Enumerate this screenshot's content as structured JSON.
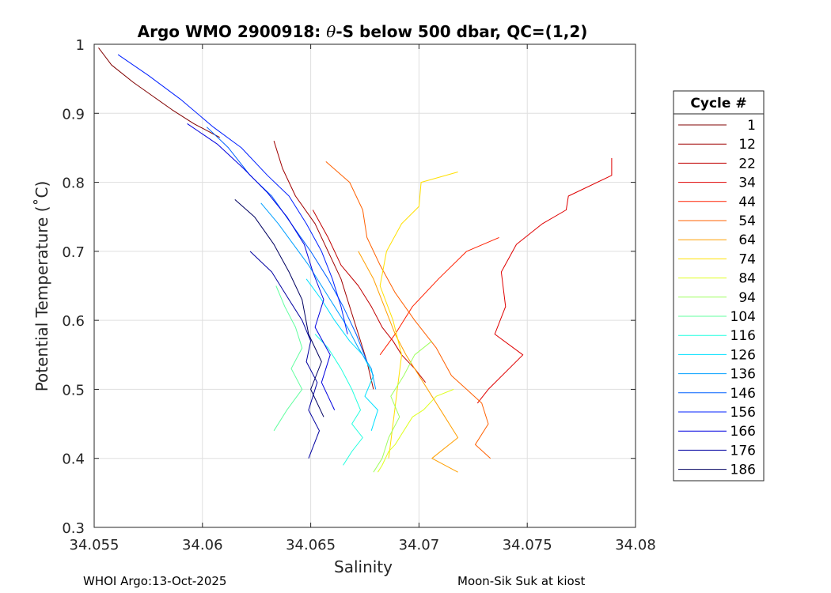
{
  "chart_data": {
    "type": "line",
    "title_prefix": "Argo WMO 2900918: ",
    "title_theta": "θ",
    "title_suffix": "-S below 500 dbar,  QC=(1,2)",
    "xlabel": "Salinity",
    "ylabel": "Potential Temperature (˚C)",
    "xlim": [
      34.055,
      34.08
    ],
    "ylim": [
      0.3,
      1.0
    ],
    "xticks": [
      34.055,
      34.06,
      34.065,
      34.07,
      34.075,
      34.08
    ],
    "xtick_labels": [
      "34.055",
      "34.06",
      "34.065",
      "34.07",
      "34.075",
      "34.08"
    ],
    "yticks": [
      0.3,
      0.4,
      0.5,
      0.6,
      0.7,
      0.8,
      0.9,
      1.0
    ],
    "ytick_labels": [
      "0.3",
      "0.4",
      "0.5",
      "0.6",
      "0.7",
      "0.8",
      "0.9",
      "1"
    ],
    "grid": true,
    "legend_title": "Cycle #",
    "legend_position": "outside-right",
    "series": [
      {
        "name": "1",
        "color": "#800000",
        "x": [
          34.0552,
          34.0558,
          34.0568,
          34.0577,
          34.0586,
          34.0596,
          34.0608
        ],
        "y": [
          0.995,
          0.97,
          0.945,
          0.925,
          0.905,
          0.885,
          0.865
        ]
      },
      {
        "name": "12",
        "color": "#9f0000",
        "x": [
          34.0633,
          34.0637,
          34.0643,
          34.0652,
          34.0658,
          34.0664,
          34.0668,
          34.0672,
          34.0676,
          34.0679
        ],
        "y": [
          0.86,
          0.82,
          0.78,
          0.74,
          0.7,
          0.66,
          0.62,
          0.58,
          0.54,
          0.5
        ]
      },
      {
        "name": "22",
        "color": "#c00000",
        "x": [
          34.0651,
          34.0658,
          34.0664,
          34.0672,
          34.0678,
          34.0683,
          34.0688,
          34.0692,
          34.0698,
          34.0703
        ],
        "y": [
          0.76,
          0.72,
          0.68,
          0.65,
          0.62,
          0.59,
          0.57,
          0.55,
          0.53,
          0.51
        ]
      },
      {
        "name": "34",
        "color": "#df0000",
        "x": [
          34.0789,
          34.0789,
          34.0769,
          34.0768,
          34.0757,
          34.0745,
          34.0738,
          34.074,
          34.0735,
          34.0748,
          34.0732,
          34.0727
        ],
        "y": [
          0.835,
          0.81,
          0.78,
          0.76,
          0.74,
          0.71,
          0.67,
          0.62,
          0.58,
          0.55,
          0.5,
          0.48
        ]
      },
      {
        "name": "44",
        "color": "#ff2000",
        "x": [
          34.0737,
          34.0722,
          34.0709,
          34.0697,
          34.0689,
          34.0682
        ],
        "y": [
          0.72,
          0.7,
          0.66,
          0.62,
          0.58,
          0.55
        ]
      },
      {
        "name": "54",
        "color": "#ff6000",
        "x": [
          34.0657,
          34.0668,
          34.0674,
          34.0676,
          34.0682,
          34.0689,
          34.0698,
          34.0708,
          34.0715,
          34.0722,
          34.0729,
          34.0732,
          34.0726,
          34.0733
        ],
        "y": [
          0.83,
          0.8,
          0.76,
          0.72,
          0.68,
          0.64,
          0.6,
          0.56,
          0.52,
          0.5,
          0.48,
          0.45,
          0.42,
          0.4
        ]
      },
      {
        "name": "64",
        "color": "#ff9f00",
        "x": [
          34.0672,
          34.0679,
          34.0684,
          34.0689,
          34.0694,
          34.07,
          34.0706,
          34.0712,
          34.0718,
          34.0706,
          34.0718
        ],
        "y": [
          0.7,
          0.66,
          0.62,
          0.58,
          0.55,
          0.52,
          0.49,
          0.46,
          0.43,
          0.4,
          0.38
        ]
      },
      {
        "name": "74",
        "color": "#ffe000",
        "x": [
          34.0718,
          34.0701,
          34.07,
          34.0692,
          34.0685,
          34.0682,
          34.0688,
          34.0692,
          34.069,
          34.0688,
          34.0686
        ],
        "y": [
          0.815,
          0.8,
          0.765,
          0.74,
          0.7,
          0.65,
          0.6,
          0.55,
          0.5,
          0.45,
          0.4
        ]
      },
      {
        "name": "84",
        "color": "#dfff20",
        "x": [
          34.0716,
          34.0708,
          34.0702,
          34.0697,
          34.0693,
          34.0689,
          34.0686,
          34.0683,
          34.0681
        ],
        "y": [
          0.5,
          0.49,
          0.47,
          0.46,
          0.44,
          0.42,
          0.41,
          0.39,
          0.38
        ]
      },
      {
        "name": "94",
        "color": "#9fff60",
        "x": [
          34.0706,
          34.0698,
          34.0693,
          34.0687,
          34.0691,
          34.0686,
          34.0683,
          34.0679
        ],
        "y": [
          0.57,
          0.55,
          0.52,
          0.49,
          0.46,
          0.43,
          0.4,
          0.38
        ]
      },
      {
        "name": "104",
        "color": "#60ff9f",
        "x": [
          34.0634,
          34.0638,
          34.0643,
          34.0646,
          34.0641,
          34.0646,
          34.0639,
          34.0633
        ],
        "y": [
          0.65,
          0.62,
          0.59,
          0.56,
          0.53,
          0.5,
          0.47,
          0.44
        ]
      },
      {
        "name": "116",
        "color": "#20ffdf",
        "x": [
          34.0652,
          34.0658,
          34.0664,
          34.0669,
          34.0673,
          34.0669,
          34.0674,
          34.0669,
          34.0665
        ],
        "y": [
          0.58,
          0.56,
          0.53,
          0.5,
          0.47,
          0.45,
          0.43,
          0.41,
          0.39
        ]
      },
      {
        "name": "126",
        "color": "#00e0ff",
        "x": [
          34.0648,
          34.0655,
          34.0661,
          34.0668,
          34.0674,
          34.0679,
          34.0675,
          34.0681,
          34.0678
        ],
        "y": [
          0.66,
          0.63,
          0.6,
          0.57,
          0.55,
          0.52,
          0.49,
          0.47,
          0.44
        ]
      },
      {
        "name": "136",
        "color": "#009fff",
        "x": [
          34.0627,
          34.0635,
          34.0642,
          34.0649,
          34.0655,
          34.0661,
          34.0667,
          34.0672,
          34.0678,
          34.068
        ],
        "y": [
          0.77,
          0.74,
          0.71,
          0.68,
          0.65,
          0.62,
          0.59,
          0.56,
          0.53,
          0.5
        ]
      },
      {
        "name": "146",
        "color": "#0060ff",
        "x": [
          34.0602,
          34.0612,
          34.0622,
          34.0632,
          34.0641,
          34.065,
          34.0658,
          34.0665,
          34.0671,
          34.0676
        ],
        "y": [
          0.88,
          0.85,
          0.81,
          0.78,
          0.74,
          0.7,
          0.66,
          0.62,
          0.58,
          0.54
        ]
      },
      {
        "name": "156",
        "color": "#0020ff",
        "x": [
          34.0561,
          34.0575,
          34.059,
          34.0605,
          34.0618,
          34.063,
          34.064,
          34.0648,
          34.0655,
          34.066,
          34.0664,
          34.0667
        ],
        "y": [
          0.985,
          0.955,
          0.92,
          0.88,
          0.85,
          0.81,
          0.78,
          0.74,
          0.7,
          0.66,
          0.62,
          0.58
        ]
      },
      {
        "name": "166",
        "color": "#0000df",
        "x": [
          34.0593,
          34.0607,
          34.0619,
          34.063,
          34.0639,
          34.0647,
          34.0651,
          34.0656,
          34.0652,
          34.0659,
          34.0655,
          34.0661
        ],
        "y": [
          0.885,
          0.855,
          0.82,
          0.785,
          0.75,
          0.71,
          0.67,
          0.63,
          0.59,
          0.55,
          0.51,
          0.47
        ]
      },
      {
        "name": "176",
        "color": "#0000a0",
        "x": [
          34.0622,
          34.0632,
          34.064,
          34.0646,
          34.065,
          34.0648,
          34.0653,
          34.0649,
          34.0654,
          34.0649
        ],
        "y": [
          0.7,
          0.67,
          0.63,
          0.6,
          0.57,
          0.54,
          0.51,
          0.47,
          0.44,
          0.4
        ]
      },
      {
        "name": "186",
        "color": "#000060",
        "x": [
          34.0615,
          34.0624,
          34.0633,
          34.064,
          34.0646,
          34.0649,
          34.0655,
          34.065,
          34.0656
        ],
        "y": [
          0.775,
          0.75,
          0.71,
          0.67,
          0.63,
          0.58,
          0.54,
          0.5,
          0.46
        ]
      }
    ]
  },
  "footer": {
    "left": "WHOI Argo:13-Oct-2025",
    "right": "Moon-Sik Suk at kiost"
  }
}
